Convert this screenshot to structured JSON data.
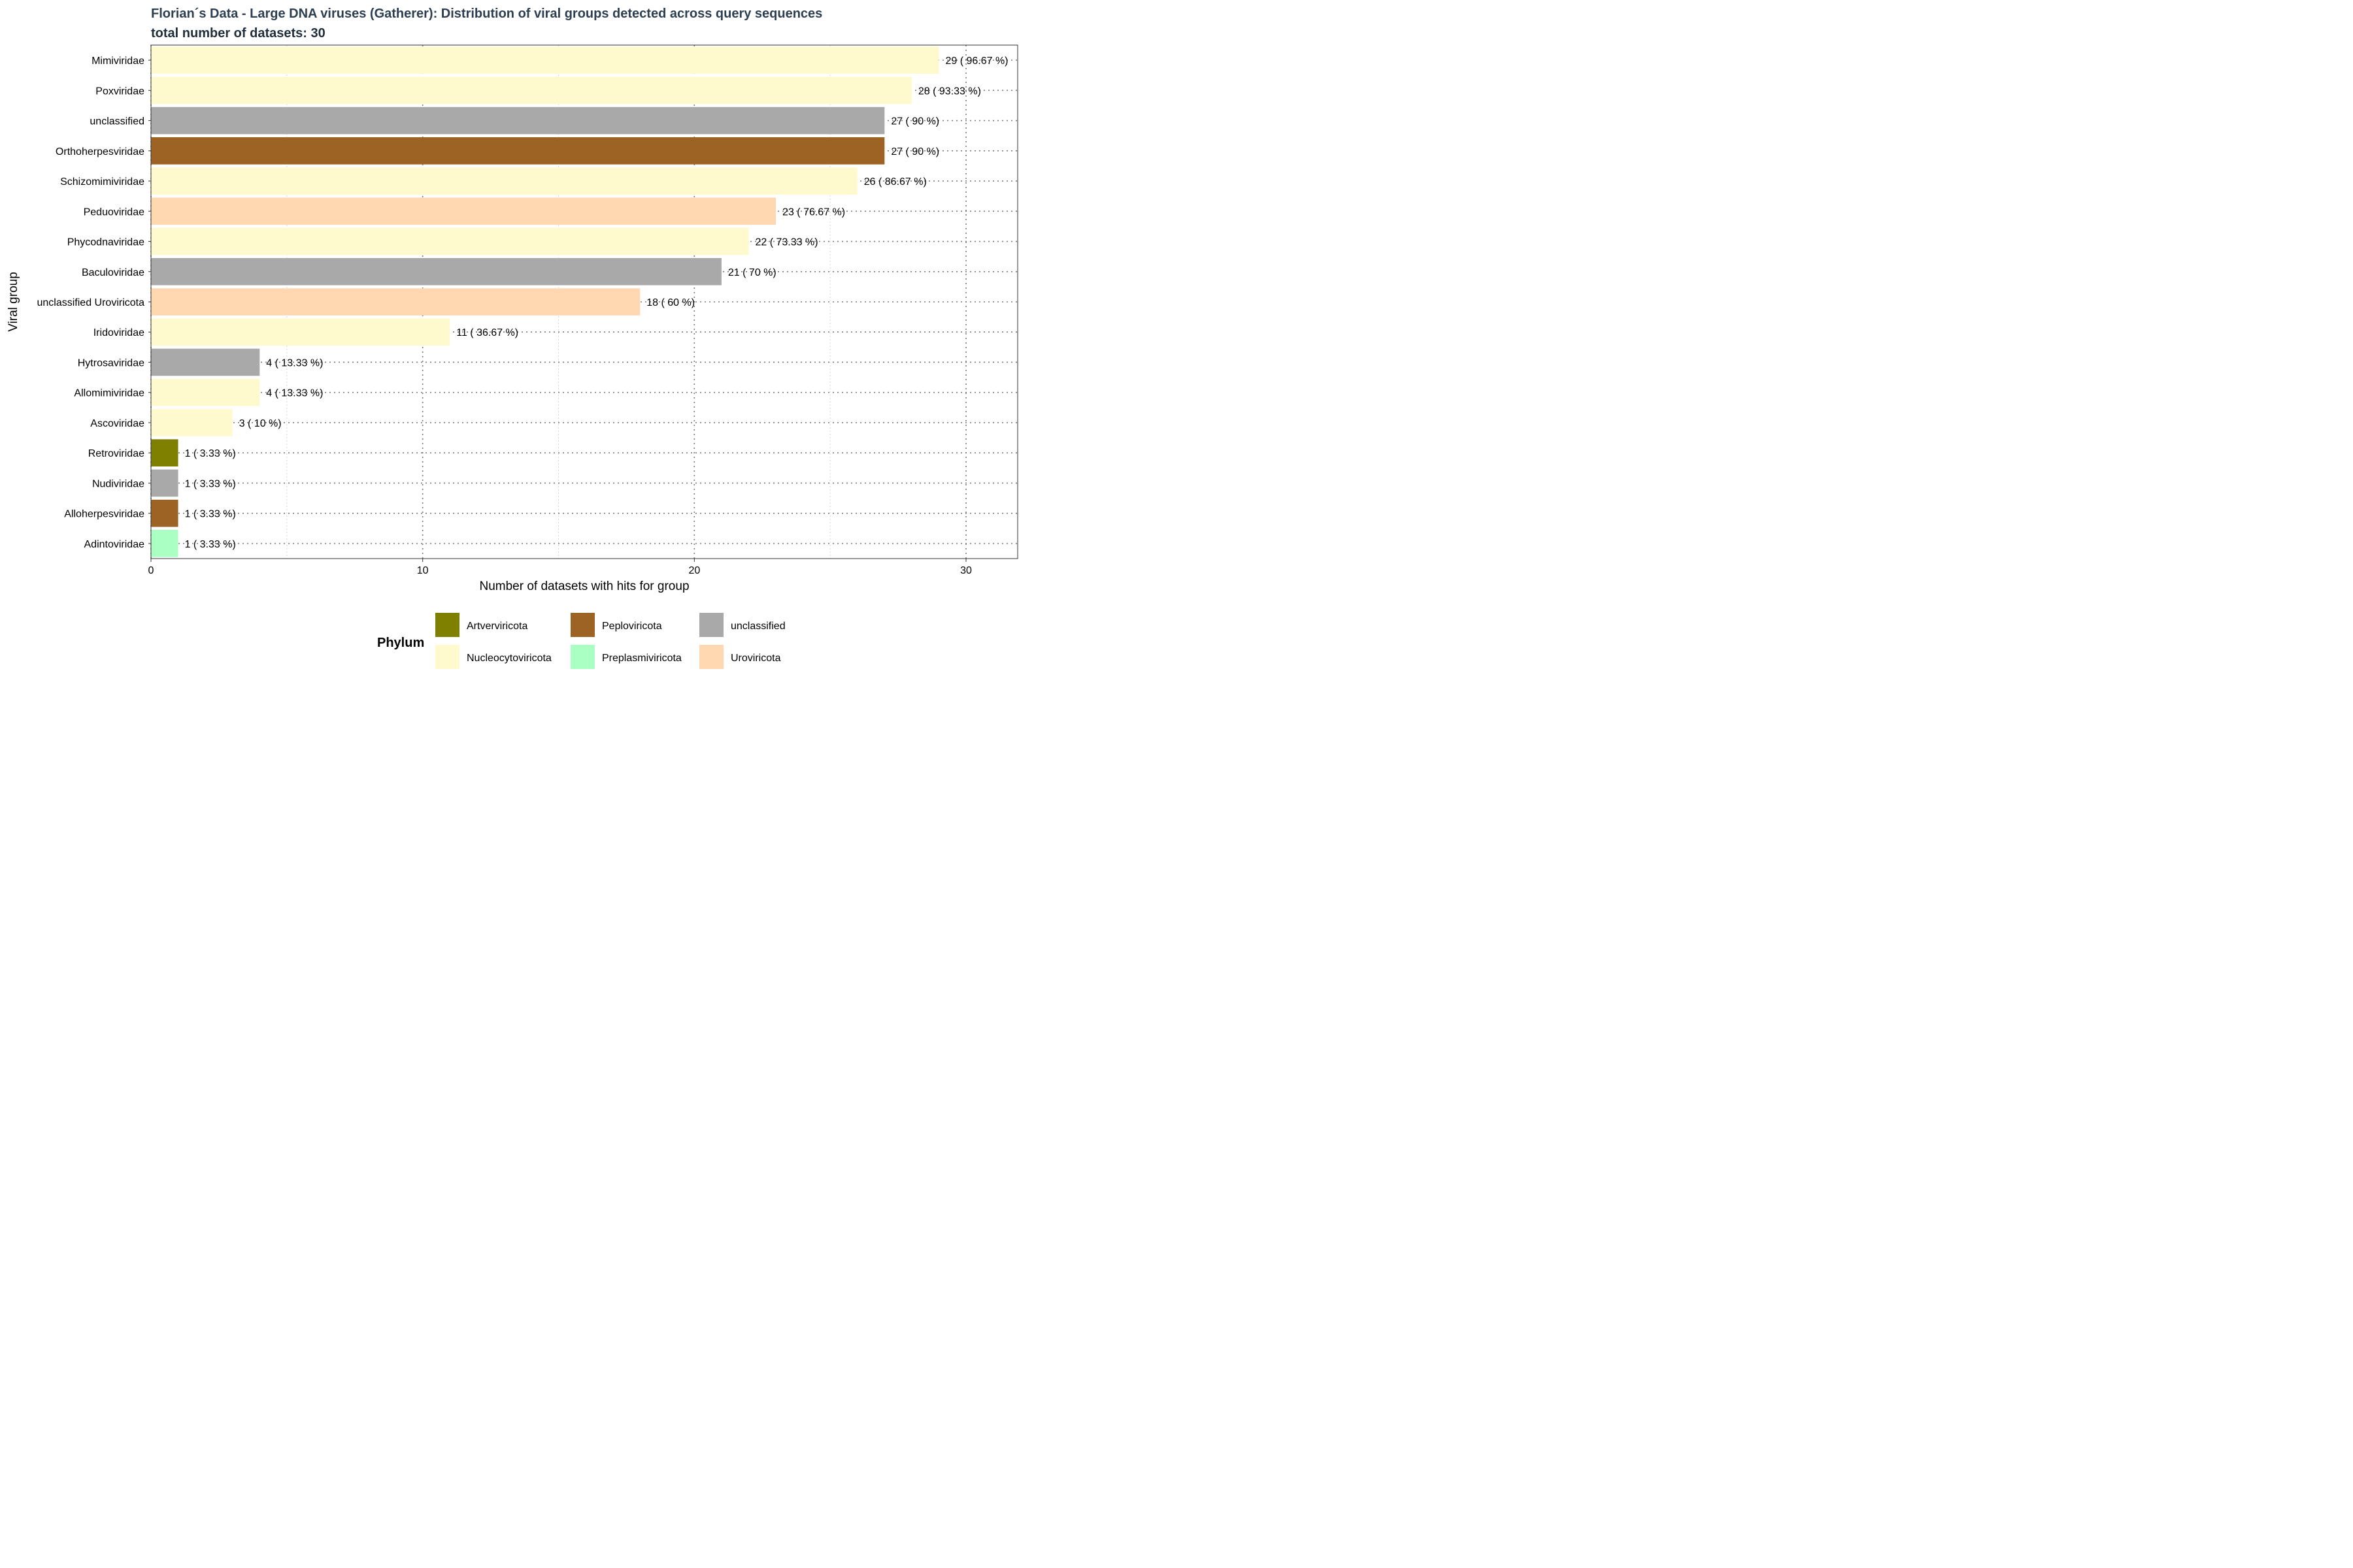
{
  "chart_data": {
    "type": "bar",
    "orientation": "horizontal",
    "title": "Florian´s Data - Large DNA viruses (Gatherer): Distribution of viral groups detected across query sequences",
    "subtitle": "total number of datasets: 30",
    "xlabel": "Number of datasets with hits for group",
    "ylabel": "Viral group",
    "xlim": [
      0,
      31.9
    ],
    "xticks": [
      0,
      10,
      20,
      30
    ],
    "grid": true,
    "legend_position": "bottom",
    "legend_title": "Phylum",
    "legend": [
      {
        "name": "Artverviricota",
        "color": "#808000"
      },
      {
        "name": "Nucleocytoviricota",
        "color": "#FFFACD"
      },
      {
        "name": "Peploviricota",
        "color": "#9C6325"
      },
      {
        "name": "Preplasmiviricota",
        "color": "#AAFFC3"
      },
      {
        "name": "unclassified",
        "color": "#A9A9A9"
      },
      {
        "name": "Uroviricota",
        "color": "#FFD8B1"
      }
    ],
    "bars": [
      {
        "category": "Mimiviridae",
        "value": 29,
        "label": "29  ( 96.67 %)",
        "phylum": "Nucleocytoviricota"
      },
      {
        "category": "Poxviridae",
        "value": 28,
        "label": "28  ( 93.33 %)",
        "phylum": "Nucleocytoviricota"
      },
      {
        "category": "unclassified",
        "value": 27,
        "label": "27  ( 90 %)",
        "phylum": "unclassified"
      },
      {
        "category": "Orthoherpesviridae",
        "value": 27,
        "label": "27  ( 90 %)",
        "phylum": "Peploviricota"
      },
      {
        "category": "Schizomimiviridae",
        "value": 26,
        "label": "26  ( 86.67 %)",
        "phylum": "Nucleocytoviricota"
      },
      {
        "category": "Peduoviridae",
        "value": 23,
        "label": "23  ( 76.67 %)",
        "phylum": "Uroviricota"
      },
      {
        "category": "Phycodnaviridae",
        "value": 22,
        "label": "22  ( 73.33 %)",
        "phylum": "Nucleocytoviricota"
      },
      {
        "category": "Baculoviridae",
        "value": 21,
        "label": "21  ( 70 %)",
        "phylum": "unclassified"
      },
      {
        "category": "unclassified Uroviricota",
        "value": 18,
        "label": "18  ( 60 %)",
        "phylum": "Uroviricota"
      },
      {
        "category": "Iridoviridae",
        "value": 11,
        "label": "11  ( 36.67 %)",
        "phylum": "Nucleocytoviricota"
      },
      {
        "category": "Hytrosaviridae",
        "value": 4,
        "label": "4  ( 13.33 %)",
        "phylum": "unclassified"
      },
      {
        "category": "Allomimiviridae",
        "value": 4,
        "label": "4  ( 13.33 %)",
        "phylum": "Nucleocytoviricota"
      },
      {
        "category": "Ascoviridae",
        "value": 3,
        "label": "3  ( 10 %)",
        "phylum": "Nucleocytoviricota"
      },
      {
        "category": "Retroviridae",
        "value": 1,
        "label": "1  ( 3.33 %)",
        "phylum": "Artverviricota"
      },
      {
        "category": "Nudiviridae",
        "value": 1,
        "label": "1  ( 3.33 %)",
        "phylum": "unclassified"
      },
      {
        "category": "Alloherpesviridae",
        "value": 1,
        "label": "1  ( 3.33 %)",
        "phylum": "Peploviricota"
      },
      {
        "category": "Adintoviridae",
        "value": 1,
        "label": "1  ( 3.33 %)",
        "phylum": "Preplasmiviricota"
      }
    ]
  }
}
